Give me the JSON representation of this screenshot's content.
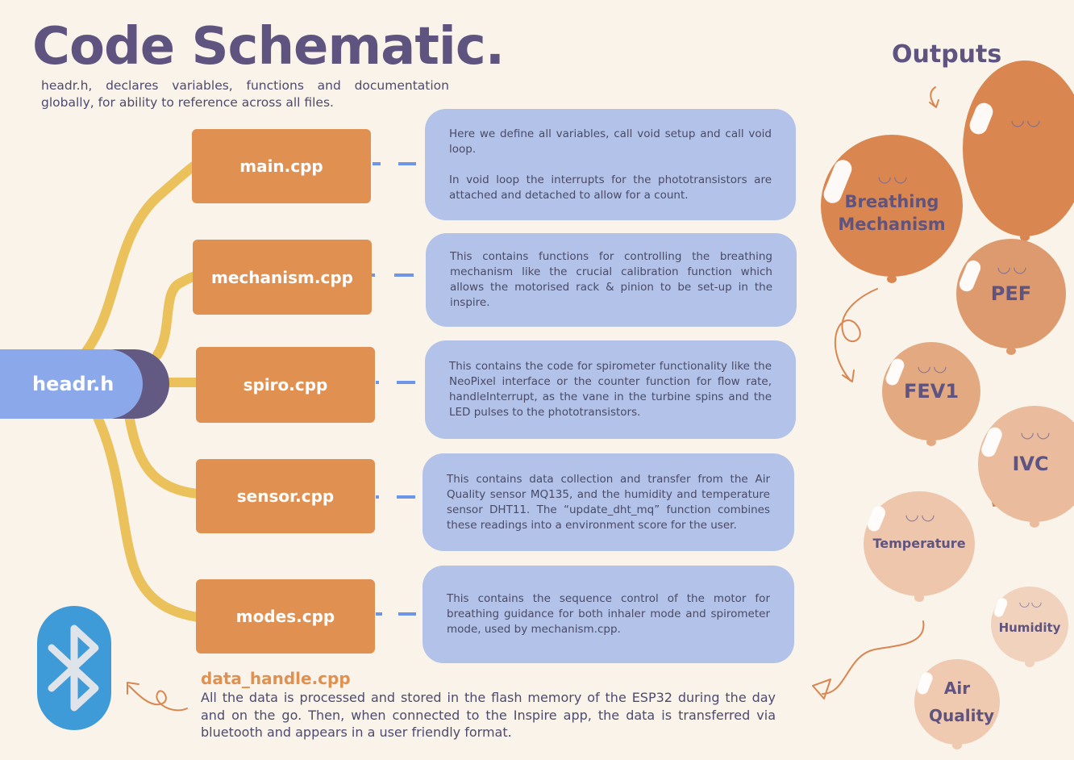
{
  "title": "Code Schematic.",
  "subtitle": "headr.h, declares variables, functions and documentation globally, for ability to reference across all files.",
  "header_file": "headr.h",
  "files": [
    {
      "name": "main.cpp",
      "description": "Here we define all variables, call void setup and call void loop.\n\nIn void loop the interrupts for the phototransistors are attached and detached to allow for a count."
    },
    {
      "name": "mechanism.cpp",
      "description": "This contains functions for controlling the breathing mechanism like the crucial calibration function which allows the motorised rack & pinion to be set-up in the inspire."
    },
    {
      "name": "spiro.cpp",
      "description": "This contains the code for spirometer functionality like the NeoPixel interface or the counter function for flow rate, handleInterrupt, as the vane in the turbine spins and the LED pulses to the phototransistors."
    },
    {
      "name": "sensor.cpp",
      "description": "This contains data collection and transfer from the Air Quality sensor MQ135, and the humidity and temperature sensor DHT11. The “update_dht_mq” function combines these readings into a environment score for the user."
    },
    {
      "name": "modes.cpp",
      "description": "This contains the sequence control of the motor for breathing guidance for both inhaler mode and spirometer mode, used by mechanism.cpp."
    }
  ],
  "data_handle": {
    "title": "data_handle.cpp",
    "text": "All the data is processed and stored in the flash memory of the ESP32 during the day and on the go. Then, when connected to the Inspire app, the data is  transferred via bluetooth and appears in a user friendly format."
  },
  "outputs_title": "Outputs",
  "outputs": [
    {
      "label": "Breathing Mechanism",
      "color": "#d98650"
    },
    {
      "label": "PEF",
      "color": "#dd9a6e"
    },
    {
      "label": "FEV1",
      "color": "#e3aa82"
    },
    {
      "label": "IVC",
      "color": "#eabb9c"
    },
    {
      "label": "Temperature",
      "color": "#eec6ab"
    },
    {
      "label": "Humidity",
      "color": "#f1d2bd"
    },
    {
      "label": "Air Quality",
      "color": "#efc9b0"
    }
  ],
  "icons": {
    "bluetooth": "bluetooth-icon",
    "face": "smile-face"
  },
  "colors": {
    "title": "#5f5480",
    "file_box": "#e09152",
    "desc_box": "#b3c2e8",
    "branch": "#eac15b",
    "dash": "#6f95e6",
    "header_pill": "#8aa8ea",
    "bluetooth": "#3f9bd8"
  }
}
